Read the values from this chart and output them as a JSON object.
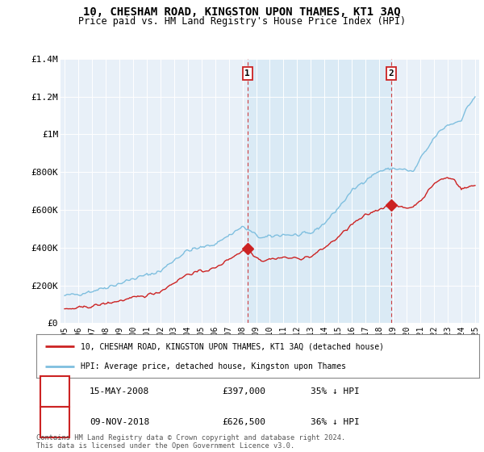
{
  "title": "10, CHESHAM ROAD, KINGSTON UPON THAMES, KT1 3AQ",
  "subtitle": "Price paid vs. HM Land Registry's House Price Index (HPI)",
  "ylim": [
    0,
    1400000
  ],
  "yticks": [
    0,
    200000,
    400000,
    600000,
    800000,
    1000000,
    1200000,
    1400000
  ],
  "ytick_labels": [
    "£0",
    "£200K",
    "£400K",
    "£600K",
    "£800K",
    "£1M",
    "£1.2M",
    "£1.4M"
  ],
  "hpi_color": "#7fbfdf",
  "price_color": "#cc2222",
  "shade_color": "#daeaf5",
  "background_color": "#e8f0f8",
  "sale1_date": "15-MAY-2008",
  "sale1_price": 397000,
  "sale1_hpi_pct": "35% ↓ HPI",
  "sale2_date": "09-NOV-2018",
  "sale2_price": 626500,
  "sale2_hpi_pct": "36% ↓ HPI",
  "legend_line1": "10, CHESHAM ROAD, KINGSTON UPON THAMES, KT1 3AQ (detached house)",
  "legend_line2": "HPI: Average price, detached house, Kingston upon Thames",
  "footer": "Contains HM Land Registry data © Crown copyright and database right 2024.\nThis data is licensed under the Open Government Licence v3.0.",
  "sale1_x": 2008.37,
  "sale2_x": 2018.86,
  "xlim_min": 1994.7,
  "xlim_max": 2025.3
}
